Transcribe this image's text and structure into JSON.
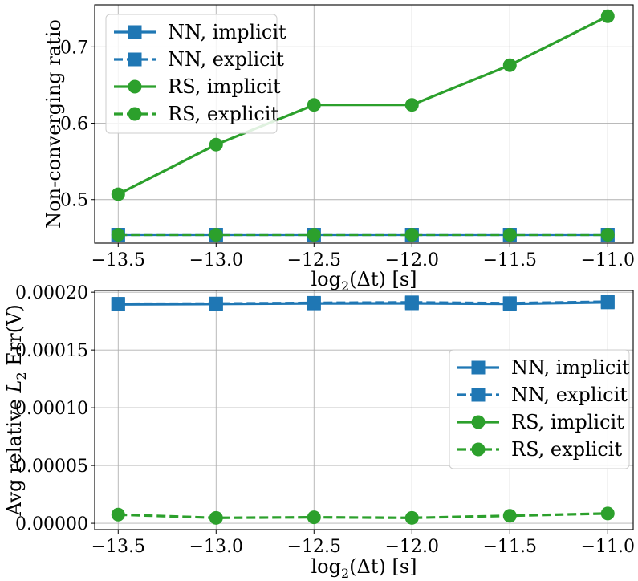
{
  "chart_data": [
    {
      "type": "line",
      "title": "",
      "xlabel": "log",
      "xlabel_sub": "2",
      "xlabel_rest": "(Δt) [s]",
      "ylabel": "Non-converging ratio",
      "xlim": [
        -13.62,
        -10.87
      ],
      "ylim": [
        0.443,
        0.755
      ],
      "xticks": [
        -13.5,
        -13.0,
        -12.5,
        -12.0,
        -11.5,
        -11.0
      ],
      "xtick_labels": [
        "−13.5",
        "−13.0",
        "−12.5",
        "−12.0",
        "−11.5",
        "−11.0"
      ],
      "yticks": [
        0.5,
        0.6,
        0.7
      ],
      "ytick_labels": [
        "0.5",
        "0.6",
        "0.7"
      ],
      "grid": true,
      "legend_position": "top-left",
      "x": [
        -13.5,
        -13.0,
        -12.5,
        -12.0,
        -11.5,
        -11.0
      ],
      "series": [
        {
          "name": "NN, implicit",
          "color": "#1f77b4",
          "style": "solid",
          "marker": "square",
          "values": [
            0.454,
            0.454,
            0.454,
            0.454,
            0.454,
            0.454
          ]
        },
        {
          "name": "NN, explicit",
          "color": "#1f77b4",
          "style": "dashed",
          "marker": "square",
          "values": [
            0.454,
            0.454,
            0.454,
            0.454,
            0.454,
            0.454
          ]
        },
        {
          "name": "RS, implicit",
          "color": "#2ca02c",
          "style": "solid",
          "marker": "circle",
          "values": [
            0.507,
            0.572,
            0.624,
            0.624,
            0.676,
            0.74
          ]
        },
        {
          "name": "RS, explicit",
          "color": "#2ca02c",
          "style": "dashed",
          "marker": "circle",
          "values": [
            0.454,
            0.454,
            0.454,
            0.454,
            0.454,
            0.454
          ]
        }
      ]
    },
    {
      "type": "line",
      "title": "",
      "xlabel": "log",
      "xlabel_sub": "2",
      "xlabel_rest": "(Δt) [s]",
      "ylabel": "Avg relative ",
      "ylabel_math": "L",
      "ylabel_sub": "2",
      "ylabel_rest": " Err(V)",
      "xlim": [
        -13.62,
        -10.87
      ],
      "ylim": [
        -5.5e-06,
        0.0002015
      ],
      "xticks": [
        -13.5,
        -13.0,
        -12.5,
        -12.0,
        -11.5,
        -11.0
      ],
      "xtick_labels": [
        "−13.5",
        "−13.0",
        "−12.5",
        "−12.0",
        "−11.5",
        "−11.0"
      ],
      "yticks": [
        0.0,
        5e-05,
        0.0001,
        0.00015,
        0.0002
      ],
      "ytick_labels": [
        "0.00000",
        "0.00005",
        "0.00010",
        "0.00015",
        "0.00020"
      ],
      "grid": true,
      "legend_position": "center-right",
      "x": [
        -13.5,
        -13.0,
        -12.5,
        -12.0,
        -11.5,
        -11.0
      ],
      "series": [
        {
          "name": "NN, implicit",
          "color": "#1f77b4",
          "style": "solid",
          "marker": "square",
          "values": [
            0.0001895,
            0.0001898,
            0.0001903,
            0.0001904,
            0.0001899,
            0.0001912
          ]
        },
        {
          "name": "NN, explicit",
          "color": "#1f77b4",
          "style": "dashed",
          "marker": "square",
          "values": [
            0.00019,
            0.0001902,
            0.0001908,
            0.0001912,
            0.0001905,
            0.0001918
          ]
        },
        {
          "name": "RS, implicit",
          "color": "#2ca02c",
          "style": "solid",
          "marker": "circle",
          "values": [
            null,
            null,
            null,
            null,
            null,
            null
          ]
        },
        {
          "name": "RS, explicit",
          "color": "#2ca02c",
          "style": "dashed",
          "marker": "circle",
          "values": [
            7.5e-06,
            4.7e-06,
            5.2e-06,
            4.7e-06,
            6.5e-06,
            8.5e-06
          ]
        }
      ]
    }
  ]
}
